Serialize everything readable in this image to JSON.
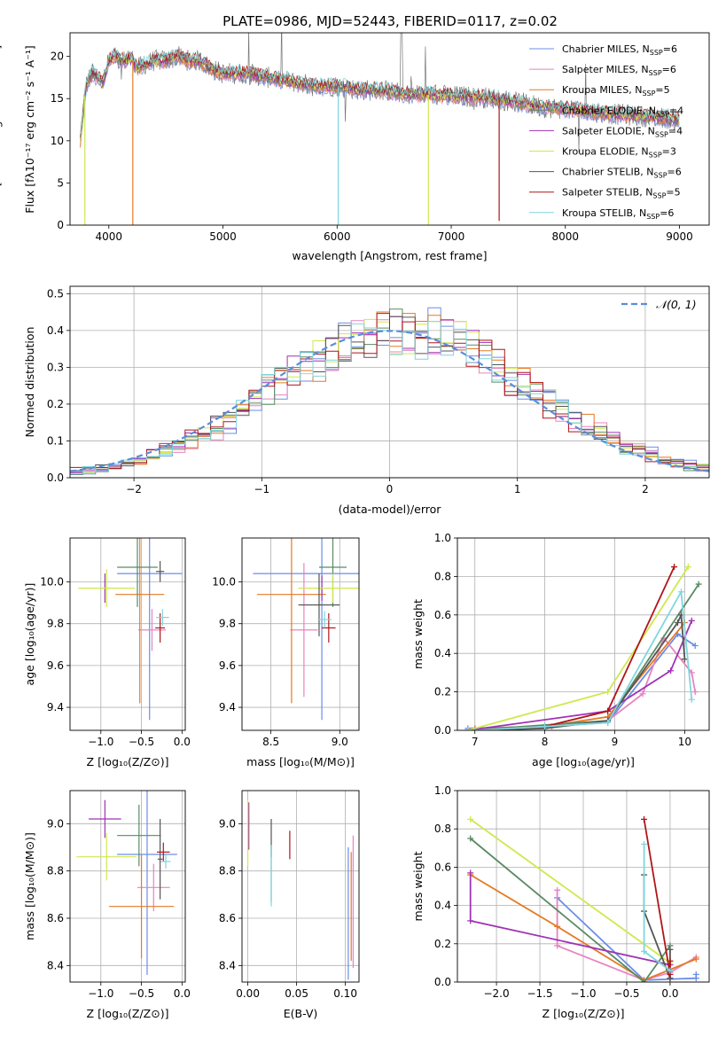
{
  "colors": {
    "Chabrier MILES": "#6b8ee6",
    "Salpeter MILES": "#e883c0",
    "Kroupa MILES": "#e37a24",
    "Chabrier ELODIE": "#5a8a64",
    "Salpeter ELODIE": "#a032b4",
    "Kroupa ELODIE": "#cfe84e",
    "Chabrier STELIB": "#555555",
    "Salpeter STELIB": "#b0151a",
    "Kroupa STELIB": "#7ed6de",
    "gauss": "#5b8ed8"
  },
  "chart_data": [
    {
      "id": "spectrum",
      "type": "line",
      "title": "PLATE=0986, MJD=52443, FIBERID=0117, z=0.02",
      "xlabel": "wavelength [Angstrom, rest frame]",
      "ylabel": "Flux [fλ10⁻¹⁷ erg cm⁻² s⁻¹ A⁻¹]",
      "xlim": [
        3660,
        9260
      ],
      "ylim": [
        0,
        22.8
      ],
      "xticks": [
        "4000",
        "5000",
        "6000",
        "7000",
        "8000",
        "9000"
      ],
      "yticks": [
        "0",
        "5",
        "10",
        "15",
        "20"
      ],
      "grid": false,
      "legend_position": "top-right",
      "legend": [
        {
          "series": "Chabrier MILES",
          "label": "Chabrier MILES, N",
          "sub": "SSP",
          "eq": "=6"
        },
        {
          "series": "Salpeter MILES",
          "label": "Salpeter MILES, N",
          "sub": "SSP",
          "eq": "=6"
        },
        {
          "series": "Kroupa MILES",
          "label": "Kroupa MILES, N",
          "sub": "SSP",
          "eq": "=5"
        },
        {
          "series": "Chabrier ELODIE",
          "label": "Chabrier ELODIE, N",
          "sub": "SSP",
          "eq": "=4"
        },
        {
          "series": "Salpeter ELODIE",
          "label": "Salpeter ELODIE, N",
          "sub": "SSP",
          "eq": "=4"
        },
        {
          "series": "Kroupa ELODIE",
          "label": "Kroupa ELODIE, N",
          "sub": "SSP",
          "eq": "=3"
        },
        {
          "series": "Chabrier STELIB",
          "label": "Chabrier STELIB, N",
          "sub": "SSP",
          "eq": "=6"
        },
        {
          "series": "Salpeter STELIB",
          "label": "Salpeter STELIB, N",
          "sub": "SSP",
          "eq": "=5"
        },
        {
          "series": "Kroupa STELIB",
          "label": "Kroupa STELIB, N",
          "sub": "SSP",
          "eq": "=6"
        }
      ],
      "continuum": {
        "wavelength": [
          3750,
          3800,
          3850,
          3900,
          3950,
          4000,
          4050,
          4100,
          4150,
          4200,
          4250,
          4300,
          4400,
          4500,
          4600,
          4700,
          4800,
          4900,
          5000,
          5200,
          5400,
          5600,
          5800,
          6000,
          6200,
          6400,
          6600,
          6800,
          7000,
          7200,
          7400,
          7600,
          7800,
          8000,
          8200,
          8400,
          8600,
          8800,
          9000
        ],
        "flux": [
          10,
          16.5,
          18,
          17.5,
          17,
          19.5,
          20,
          19.5,
          19.5,
          19.8,
          18.5,
          19,
          19.5,
          19.5,
          20,
          19.5,
          19.5,
          18.5,
          18,
          18,
          17.5,
          17,
          16.5,
          16.5,
          16,
          16,
          15.5,
          15.5,
          15.3,
          15.2,
          15,
          14.5,
          14,
          13.8,
          13.5,
          13.2,
          13,
          12.8,
          12.5
        ]
      },
      "dips": [
        {
          "series": "Kroupa ELODIE",
          "wavelength": 3790,
          "flux": 0
        },
        {
          "series": "Kroupa MILES",
          "wavelength": 4210,
          "flux": 0
        },
        {
          "series": "Kroupa STELIB",
          "wavelength": 6010,
          "flux": 0
        },
        {
          "series": "Kroupa ELODIE",
          "wavelength": 6800,
          "flux": 0
        },
        {
          "series": "Salpeter STELIB",
          "wavelength": 7420,
          "flux": 0.5
        }
      ]
    },
    {
      "id": "residuals",
      "type": "histogram",
      "xlabel": "(data-model)/error",
      "ylabel": "Normed distribution",
      "xlim": [
        -2.5,
        2.5
      ],
      "ylim": [
        0,
        0.52
      ],
      "xticks": [
        "−2",
        "−1",
        "0",
        "1",
        "2"
      ],
      "yticks": [
        "0.0",
        "0.1",
        "0.2",
        "0.3",
        "0.4",
        "0.5"
      ],
      "grid": true,
      "legend_position": "top-right",
      "gauss_label": "𝒩(0, 1)",
      "bin_width": 0.1
    },
    {
      "id": "age-vs-Z",
      "type": "errorbar",
      "xlabel": "Z [log₁₀(Z/Z⊙)]",
      "ylabel": "age  [log₁₀(age/yr)]",
      "xlim": [
        -1.38,
        0.04
      ],
      "ylim": [
        9.29,
        10.21
      ],
      "xticks": [
        "−1.0",
        "−0.5",
        "0.0"
      ],
      "yticks": [
        "9.4",
        "9.6",
        "9.8",
        "10.0"
      ],
      "grid": true,
      "points": [
        {
          "series": "Chabrier MILES",
          "x": -0.4,
          "y": 10.04,
          "xerr": 0.4,
          "yerr": 0.7
        },
        {
          "series": "Salpeter MILES",
          "x": -0.37,
          "y": 9.77,
          "xerr": 0.17,
          "yerr": 0.1
        },
        {
          "series": "Kroupa MILES",
          "x": -0.52,
          "y": 9.94,
          "xerr": 0.3,
          "yerr": 0.52
        },
        {
          "series": "Chabrier ELODIE",
          "x": -0.55,
          "y": 10.07,
          "xerr": 0.25,
          "yerr": 0.19
        },
        {
          "series": "Salpeter ELODIE",
          "x": -0.95,
          "y": 9.97,
          "xerr": 0.01,
          "yerr": 0.07
        },
        {
          "series": "Kroupa ELODIE",
          "x": -0.93,
          "y": 9.97,
          "xerr": 0.35,
          "yerr": 0.09
        },
        {
          "series": "Chabrier STELIB",
          "x": -0.27,
          "y": 10.05,
          "xerr": 0.05,
          "yerr": 0.05
        },
        {
          "series": "Salpeter STELIB",
          "x": -0.27,
          "y": 9.78,
          "xerr": 0.06,
          "yerr": 0.07
        },
        {
          "series": "Kroupa STELIB",
          "x": -0.24,
          "y": 9.83,
          "xerr": 0.08,
          "yerr": 0.04
        }
      ]
    },
    {
      "id": "age-vs-mass",
      "type": "errorbar",
      "xlabel": "mass [log₁₀(M/M⊙)]",
      "ylabel": "",
      "xlim": [
        8.29,
        9.14
      ],
      "ylim": [
        9.29,
        10.21
      ],
      "xticks": [
        "8.5",
        "9.0"
      ],
      "yticks": [
        "9.4",
        "9.6",
        "9.8",
        "10.0"
      ],
      "grid": true,
      "points": [
        {
          "series": "Chabrier MILES",
          "x": 8.87,
          "y": 10.04,
          "xerr": 0.5,
          "yerr": 0.7
        },
        {
          "series": "Salpeter MILES",
          "x": 8.74,
          "y": 9.77,
          "xerr": 0.1,
          "yerr": 0.32
        },
        {
          "series": "Kroupa MILES",
          "x": 8.65,
          "y": 9.94,
          "xerr": 0.25,
          "yerr": 0.52
        },
        {
          "series": "Chabrier ELODIE",
          "x": 8.95,
          "y": 10.07,
          "xerr": 0.1,
          "yerr": 0.19
        },
        {
          "series": "Salpeter ELODIE",
          "x": 8.87,
          "y": 9.97,
          "xerr": 0.01,
          "yerr": 0.06
        },
        {
          "series": "Kroupa ELODIE",
          "x": 8.95,
          "y": 9.97,
          "xerr": 0.25,
          "yerr": 0.07
        },
        {
          "series": "Chabrier STELIB",
          "x": 8.85,
          "y": 9.89,
          "xerr": 0.15,
          "yerr": 0.15
        },
        {
          "series": "Salpeter STELIB",
          "x": 8.92,
          "y": 9.78,
          "xerr": 0.05,
          "yerr": 0.07
        },
        {
          "series": "Kroupa STELIB",
          "x": 8.89,
          "y": 9.82,
          "xerr": 0.05,
          "yerr": 0.04
        }
      ]
    },
    {
      "id": "weight-vs-age",
      "type": "line",
      "xlabel": "age  [log₁₀(age/yr)]",
      "ylabel": "mass weight",
      "xlim": [
        6.75,
        10.35
      ],
      "ylim": [
        0,
        1
      ],
      "xticks": [
        "7",
        "8",
        "9",
        "10"
      ],
      "yticks": [
        "0.0",
        "0.2",
        "0.4",
        "0.6",
        "0.8",
        "1.0"
      ],
      "grid": true,
      "series": [
        {
          "name": "Chabrier MILES",
          "x": [
            6.9,
            8.0,
            8.9,
            9.9,
            10.15
          ],
          "y": [
            0.01,
            0.02,
            0.04,
            0.5,
            0.44
          ]
        },
        {
          "name": "Salpeter MILES",
          "x": [
            7.0,
            8.1,
            8.9,
            9.4,
            9.7,
            10.1,
            10.15
          ],
          "y": [
            0.01,
            0.02,
            0.05,
            0.19,
            0.48,
            0.3,
            0.2
          ]
        },
        {
          "name": "Kroupa MILES",
          "x": [
            7.0,
            8.0,
            8.9,
            10.0
          ],
          "y": [
            0.01,
            0.02,
            0.07,
            0.56
          ]
        },
        {
          "name": "Chabrier ELODIE",
          "x": [
            6.9,
            8.9,
            10.2
          ],
          "y": [
            0.0,
            0.05,
            0.76
          ]
        },
        {
          "name": "Salpeter ELODIE",
          "x": [
            6.9,
            8.9,
            9.8,
            10.1
          ],
          "y": [
            0.0,
            0.1,
            0.31,
            0.57
          ]
        },
        {
          "name": "Kroupa ELODIE",
          "x": [
            6.9,
            8.9,
            10.05
          ],
          "y": [
            0.0,
            0.2,
            0.85
          ]
        },
        {
          "name": "Chabrier STELIB",
          "x": [
            7.0,
            8.0,
            8.9,
            9.9,
            9.95,
            10.0
          ],
          "y": [
            0.0,
            0.01,
            0.05,
            0.56,
            0.6,
            0.37
          ]
        },
        {
          "name": "Salpeter STELIB",
          "x": [
            7.0,
            8.0,
            8.9,
            9.85
          ],
          "y": [
            0.0,
            0.02,
            0.1,
            0.85
          ]
        },
        {
          "name": "Kroupa STELIB",
          "x": [
            7.0,
            8.0,
            8.9,
            9.95,
            10.1
          ],
          "y": [
            0.0,
            0.02,
            0.04,
            0.72,
            0.16
          ]
        }
      ]
    },
    {
      "id": "mass-vs-Z",
      "type": "errorbar",
      "xlabel": "Z [log₁₀(Z/Z⊙)]",
      "ylabel": "mass [log₁₀(M/M⊙)]",
      "xlim": [
        -1.38,
        0.04
      ],
      "ylim": [
        8.33,
        9.14
      ],
      "xticks": [
        "−1.0",
        "−0.5",
        "0.0"
      ],
      "yticks": [
        "8.4",
        "8.6",
        "8.8",
        "9.0"
      ],
      "grid": true,
      "points": [
        {
          "series": "Chabrier MILES",
          "x": -0.43,
          "y": 8.87,
          "xerr": 0.37,
          "yerr": 0.51
        },
        {
          "series": "Salpeter MILES",
          "x": -0.35,
          "y": 8.73,
          "xerr": 0.2,
          "yerr": 0.1
        },
        {
          "series": "Kroupa MILES",
          "x": -0.5,
          "y": 8.65,
          "xerr": 0.4,
          "yerr": 0.22
        },
        {
          "series": "Chabrier ELODIE",
          "x": -0.53,
          "y": 8.95,
          "xerr": 0.27,
          "yerr": 0.13
        },
        {
          "series": "Salpeter ELODIE",
          "x": -0.95,
          "y": 9.02,
          "xerr": 0.2,
          "yerr": 0.08
        },
        {
          "series": "Kroupa ELODIE",
          "x": -0.93,
          "y": 8.86,
          "xerr": 0.37,
          "yerr": 0.1
        },
        {
          "series": "Chabrier STELIB",
          "x": -0.27,
          "y": 8.85,
          "xerr": 0.03,
          "yerr": 0.17
        },
        {
          "series": "Salpeter STELIB",
          "x": -0.23,
          "y": 8.88,
          "xerr": 0.08,
          "yerr": 0.04
        },
        {
          "series": "Kroupa STELIB",
          "x": -0.2,
          "y": 8.84,
          "xerr": 0.06,
          "yerr": 0.03
        }
      ]
    },
    {
      "id": "mass-vs-EBV",
      "type": "errorbar",
      "xlabel": "E(B-V)",
      "ylabel": "",
      "xlim": [
        -0.006,
        0.114
      ],
      "ylim": [
        8.33,
        9.14
      ],
      "xticks": [
        "0.00",
        "0.05",
        "0.10"
      ],
      "yticks": [
        "8.4",
        "8.6",
        "8.8",
        "9.0"
      ],
      "grid": true,
      "points": [
        {
          "series": "Chabrier MILES",
          "x": 0.103,
          "y": 8.62,
          "xerr": 0,
          "yerr": 0.28
        },
        {
          "series": "Salpeter MILES",
          "x": 0.108,
          "y": 8.67,
          "xerr": 0,
          "yerr": 0.28
        },
        {
          "series": "Kroupa MILES",
          "x": 0.106,
          "y": 8.65,
          "xerr": 0,
          "yerr": 0.23
        },
        {
          "series": "Chabrier ELODIE",
          "x": 0.024,
          "y": 8.79,
          "xerr": 0,
          "yerr": 0.12
        },
        {
          "series": "Salpeter ELODIE",
          "x": 0.001,
          "y": 8.99,
          "xerr": 0,
          "yerr": 0.1
        },
        {
          "series": "Kroupa ELODIE",
          "x": 0.0,
          "y": 8.96,
          "xerr": 0,
          "yerr": 0.14
        },
        {
          "series": "Chabrier STELIB",
          "x": 0.024,
          "y": 8.94,
          "xerr": 0,
          "yerr": 0.08
        },
        {
          "series": "Salpeter STELIB",
          "x": 0.043,
          "y": 8.91,
          "xerr": 0,
          "yerr": 0.06
        },
        {
          "series": "Kroupa STELIB",
          "x": 0.024,
          "y": 8.78,
          "xerr": 0,
          "yerr": 0.13
        }
      ]
    },
    {
      "id": "weight-vs-Z",
      "type": "line",
      "xlabel": "Z [log₁₀(Z/Z⊙)]",
      "ylabel": "mass weight",
      "xlim": [
        -2.45,
        0.45
      ],
      "ylim": [
        0,
        1
      ],
      "xticks": [
        "−2.0",
        "−1.5",
        "−1.0",
        "−0.5",
        "0.0"
      ],
      "yticks": [
        "0.0",
        "0.2",
        "0.4",
        "0.6",
        "0.8",
        "1.0"
      ],
      "grid": true,
      "series": [
        {
          "name": "Chabrier MILES",
          "x": [
            -1.3,
            -0.3,
            0.3,
            0.3
          ],
          "y": [
            0.44,
            0.01,
            0.02,
            0.04
          ]
        },
        {
          "name": "Salpeter MILES",
          "x": [
            -1.3,
            -1.3,
            -0.3,
            0.0,
            0.3
          ],
          "y": [
            0.48,
            0.19,
            0.01,
            0.05,
            0.13
          ]
        },
        {
          "name": "Kroupa MILES",
          "x": [
            -2.3,
            -1.3,
            -0.3,
            0.3
          ],
          "y": [
            0.56,
            0.29,
            0.01,
            0.12
          ]
        },
        {
          "name": "Chabrier ELODIE",
          "x": [
            -2.3,
            -0.3,
            0.0
          ],
          "y": [
            0.75,
            0.0,
            0.19
          ]
        },
        {
          "name": "Salpeter ELODIE",
          "x": [
            -2.3,
            -2.3,
            0.0,
            0.0
          ],
          "y": [
            0.57,
            0.32,
            0.09,
            0.02
          ]
        },
        {
          "name": "Kroupa ELODIE",
          "x": [
            -2.3,
            0.0
          ],
          "y": [
            0.85,
            0.1
          ]
        },
        {
          "name": "Chabrier STELIB",
          "x": [
            -0.3,
            -0.3,
            0.0,
            0.0
          ],
          "y": [
            0.56,
            0.37,
            0.02,
            0.17
          ]
        },
        {
          "name": "Salpeter STELIB",
          "x": [
            -0.3,
            0.0,
            0.0
          ],
          "y": [
            0.85,
            0.04,
            0.11
          ]
        },
        {
          "name": "Kroupa STELIB",
          "x": [
            -0.3,
            -0.3,
            0.0
          ],
          "y": [
            0.72,
            0.16,
            0.06
          ]
        }
      ]
    }
  ]
}
